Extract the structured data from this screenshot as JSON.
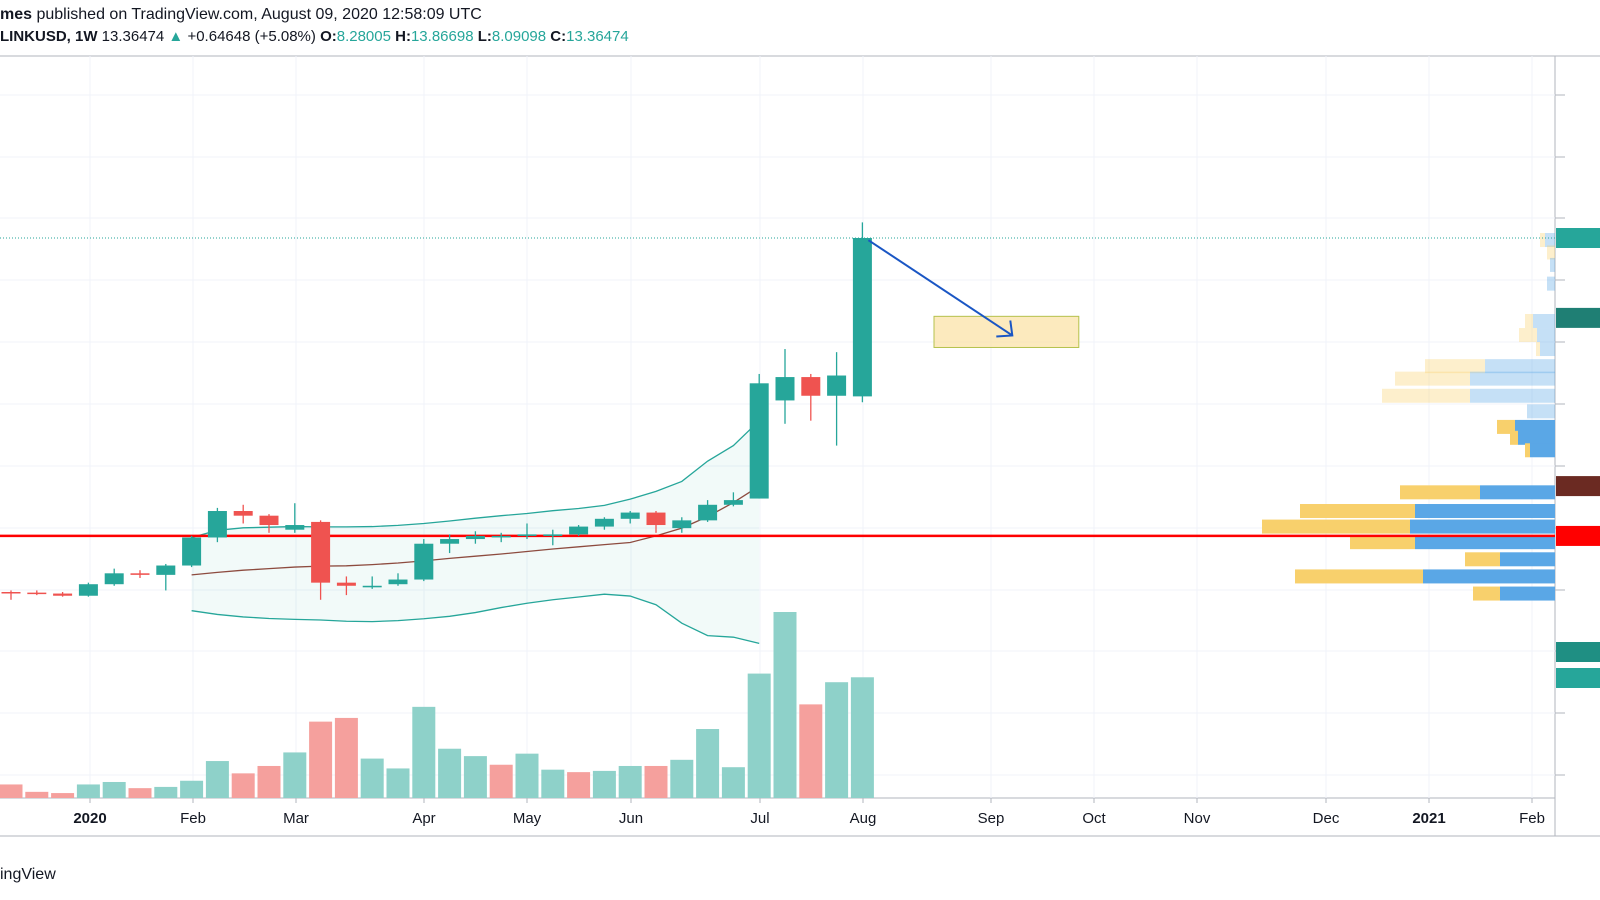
{
  "header": {
    "author": "mes",
    "published_text": " published on TradingView.com, August 09, 2020 12:58:09 UTC",
    "symbol": "LINKUSD, 1W",
    "last": "13.36474",
    "change_arrow": "▲",
    "change": "+0.64648 (+5.08%)",
    "o_label": "O:",
    "o_value": "8.28005",
    "h_label": "H:",
    "h_value": "13.86698",
    "l_label": "L:",
    "l_value": "8.09098",
    "c_label": "C:",
    "c_value": "13.36474"
  },
  "footer": {
    "brand_text": "ingView"
  },
  "colors": {
    "up": "#26a69a",
    "down": "#ef5350",
    "up_volume": "#8ed1c9",
    "down_volume": "#f5a09d",
    "band": "#26a69a",
    "mid_line": "#8d4b3f",
    "support_line": "#ff0000",
    "target_box": "#fbe3a8",
    "arrow": "#1a56c4",
    "vp_blue": "#5aa7e6",
    "vp_yellow": "#f8d06c"
  },
  "chart_data": {
    "type": "candlestick",
    "symbol": "LINKUSD",
    "interval": "1W",
    "x_tick_labels": [
      "2020",
      "Feb",
      "Mar",
      "Apr",
      "May",
      "Jun",
      "Jul",
      "Aug",
      "Sep",
      "Oct",
      "Nov",
      "Dec",
      "2021",
      "Feb"
    ],
    "bold_tick_labels": [
      "2020",
      "2021"
    ],
    "ylim": [
      1.0,
      16.0
    ],
    "candles": [
      {
        "o": 2.0,
        "h": 2.05,
        "l": 1.75,
        "c": 1.98
      },
      {
        "o": 1.98,
        "h": 2.05,
        "l": 1.9,
        "c": 1.95
      },
      {
        "o": 1.95,
        "h": 2.0,
        "l": 1.85,
        "c": 1.88
      },
      {
        "o": 1.88,
        "h": 2.3,
        "l": 1.85,
        "c": 2.25
      },
      {
        "o": 2.25,
        "h": 2.75,
        "l": 2.2,
        "c": 2.6
      },
      {
        "o": 2.6,
        "h": 2.7,
        "l": 2.45,
        "c": 2.55
      },
      {
        "o": 2.55,
        "h": 2.9,
        "l": 2.05,
        "c": 2.85
      },
      {
        "o": 2.85,
        "h": 3.8,
        "l": 2.8,
        "c": 3.75
      },
      {
        "o": 3.75,
        "h": 4.7,
        "l": 3.6,
        "c": 4.6
      },
      {
        "o": 4.6,
        "h": 4.8,
        "l": 4.2,
        "c": 4.45
      },
      {
        "o": 4.45,
        "h": 4.5,
        "l": 3.9,
        "c": 4.15
      },
      {
        "o": 4.0,
        "h": 4.85,
        "l": 3.9,
        "c": 4.15
      },
      {
        "o": 4.25,
        "h": 4.3,
        "l": 1.75,
        "c": 2.3
      },
      {
        "o": 2.3,
        "h": 2.5,
        "l": 1.9,
        "c": 2.2
      },
      {
        "o": 2.15,
        "h": 2.5,
        "l": 2.1,
        "c": 2.2
      },
      {
        "o": 2.25,
        "h": 2.6,
        "l": 2.2,
        "c": 2.4
      },
      {
        "o": 2.4,
        "h": 3.7,
        "l": 2.35,
        "c": 3.55
      },
      {
        "o": 3.55,
        "h": 3.85,
        "l": 3.25,
        "c": 3.7
      },
      {
        "o": 3.7,
        "h": 3.95,
        "l": 3.55,
        "c": 3.8
      },
      {
        "o": 3.8,
        "h": 3.9,
        "l": 3.6,
        "c": 3.8
      },
      {
        "o": 3.8,
        "h": 4.2,
        "l": 3.7,
        "c": 3.85
      },
      {
        "o": 3.8,
        "h": 4.0,
        "l": 3.5,
        "c": 3.85
      },
      {
        "o": 3.85,
        "h": 4.15,
        "l": 3.8,
        "c": 4.1
      },
      {
        "o": 4.1,
        "h": 4.4,
        "l": 4.0,
        "c": 4.35
      },
      {
        "o": 4.35,
        "h": 4.6,
        "l": 4.2,
        "c": 4.55
      },
      {
        "o": 4.55,
        "h": 4.6,
        "l": 3.9,
        "c": 4.15
      },
      {
        "o": 4.05,
        "h": 4.4,
        "l": 3.9,
        "c": 4.3
      },
      {
        "o": 4.3,
        "h": 4.95,
        "l": 4.25,
        "c": 4.8
      },
      {
        "o": 4.8,
        "h": 5.2,
        "l": 4.75,
        "c": 4.95
      },
      {
        "o": 5.0,
        "h": 9.0,
        "l": 5.0,
        "c": 8.7
      },
      {
        "o": 8.15,
        "h": 9.8,
        "l": 7.4,
        "c": 8.9
      },
      {
        "o": 8.9,
        "h": 9.0,
        "l": 7.5,
        "c": 8.3
      },
      {
        "o": 8.3,
        "h": 9.7,
        "l": 6.7,
        "c": 8.95
      },
      {
        "o": 8.28005,
        "h": 13.86698,
        "l": 8.09098,
        "c": 13.36474
      }
    ],
    "bollinger_bands": {
      "start_index": 7,
      "upper": [
        3.75,
        3.98,
        4.06,
        4.08,
        4.1,
        4.09,
        4.09,
        4.1,
        4.14,
        4.2,
        4.28,
        4.37,
        4.45,
        4.52,
        4.61,
        4.68,
        4.78,
        4.98,
        5.23,
        5.55,
        6.2,
        6.7,
        7.5
      ],
      "middle": [
        2.55,
        2.63,
        2.7,
        2.75,
        2.8,
        2.83,
        2.84,
        2.88,
        2.93,
        3.0,
        3.08,
        3.15,
        3.22,
        3.3,
        3.38,
        3.45,
        3.52,
        3.59,
        3.8,
        4.05,
        4.42,
        4.87,
        5.4
      ],
      "lower": [
        1.4,
        1.28,
        1.2,
        1.15,
        1.12,
        1.1,
        1.06,
        1.05,
        1.08,
        1.14,
        1.22,
        1.34,
        1.5,
        1.64,
        1.75,
        1.84,
        1.93,
        1.87,
        1.59,
        1.0,
        0.6,
        0.55,
        0.35
      ]
    },
    "volume": [
      {
        "v": 55,
        "up": false
      },
      {
        "v": 25,
        "up": false
      },
      {
        "v": 20,
        "up": false
      },
      {
        "v": 55,
        "up": true
      },
      {
        "v": 65,
        "up": true
      },
      {
        "v": 40,
        "up": false
      },
      {
        "v": 45,
        "up": true
      },
      {
        "v": 70,
        "up": true
      },
      {
        "v": 150,
        "up": true
      },
      {
        "v": 100,
        "up": false
      },
      {
        "v": 130,
        "up": false
      },
      {
        "v": 185,
        "up": true
      },
      {
        "v": 310,
        "up": false
      },
      {
        "v": 325,
        "up": false
      },
      {
        "v": 160,
        "up": true
      },
      {
        "v": 120,
        "up": true
      },
      {
        "v": 370,
        "up": true
      },
      {
        "v": 200,
        "up": true
      },
      {
        "v": 170,
        "up": true
      },
      {
        "v": 135,
        "up": false
      },
      {
        "v": 180,
        "up": true
      },
      {
        "v": 115,
        "up": true
      },
      {
        "v": 105,
        "up": false
      },
      {
        "v": 110,
        "up": true
      },
      {
        "v": 130,
        "up": true
      },
      {
        "v": 130,
        "up": false
      },
      {
        "v": 155,
        "up": true
      },
      {
        "v": 280,
        "up": true
      },
      {
        "v": 125,
        "up": true
      },
      {
        "v": 505,
        "up": true
      },
      {
        "v": 755,
        "up": true
      },
      {
        "v": 380,
        "up": false
      },
      {
        "v": 470,
        "up": true
      },
      {
        "v": 490,
        "up": true
      }
    ],
    "volume_ylim": [
      0,
      780
    ],
    "support_level": 3.8,
    "last_price": 13.36474,
    "target_zone": {
      "x_start_week": 35,
      "x_end_week": 41,
      "price_top": 10.85,
      "price_bottom": 9.85
    },
    "projection_arrow": {
      "from": {
        "week": 33,
        "price": 13.36
      },
      "to": {
        "week": 38.5,
        "price": 10.3
      }
    },
    "volume_profile": [
      {
        "price": 13.3,
        "blue": 10,
        "yellow": 5,
        "faded": true
      },
      {
        "price": 12.9,
        "blue": 0,
        "yellow": 8,
        "faded": true
      },
      {
        "price": 12.5,
        "blue": 5,
        "yellow": 0,
        "faded": true
      },
      {
        "price": 11.9,
        "blue": 8,
        "yellow": 0,
        "faded": true
      },
      {
        "price": 10.7,
        "blue": 22,
        "yellow": 8,
        "faded": true
      },
      {
        "price": 10.25,
        "blue": 18,
        "yellow": 18,
        "faded": true
      },
      {
        "price": 9.8,
        "blue": 15,
        "yellow": 4,
        "faded": true
      },
      {
        "price": 9.25,
        "blue": 70,
        "yellow": 60,
        "faded": true
      },
      {
        "price": 8.85,
        "blue": 85,
        "yellow": 75,
        "faded": true
      },
      {
        "price": 8.3,
        "blue": 85,
        "yellow": 88,
        "faded": true
      },
      {
        "price": 7.8,
        "blue": 28,
        "yellow": 0,
        "faded": true
      },
      {
        "price": 7.3,
        "blue": 40,
        "yellow": 18,
        "faded": false
      },
      {
        "price": 6.95,
        "blue": 37,
        "yellow": 8,
        "faded": false
      },
      {
        "price": 6.55,
        "blue": 25,
        "yellow": 5,
        "faded": false
      },
      {
        "price": 5.2,
        "blue": 75,
        "yellow": 80,
        "faded": false
      },
      {
        "price": 4.6,
        "blue": 140,
        "yellow": 115,
        "faded": false
      },
      {
        "price": 4.1,
        "blue": 145,
        "yellow": 148,
        "faded": false
      },
      {
        "price": 3.6,
        "blue": 140,
        "yellow": 65,
        "faded": false
      },
      {
        "price": 3.05,
        "blue": 55,
        "yellow": 35,
        "faded": false
      },
      {
        "price": 2.5,
        "blue": 132,
        "yellow": 128,
        "faded": false
      },
      {
        "price": 1.95,
        "blue": 55,
        "yellow": 27,
        "faded": false
      }
    ],
    "grid": true,
    "legend": "none"
  }
}
